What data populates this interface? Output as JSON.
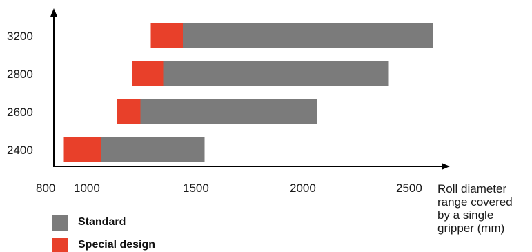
{
  "chart_data": {
    "type": "bar",
    "orientation": "horizontal",
    "stacked": true,
    "categories": [
      "3200",
      "2800",
      "2600",
      "2400"
    ],
    "series": [
      {
        "name": "Special design",
        "color": "#e8402a",
        "ranges": [
          [
            1245,
            1400
          ],
          [
            1155,
            1305
          ],
          [
            1080,
            1195
          ],
          [
            825,
            1005
          ]
        ]
      },
      {
        "name": "Standard",
        "color": "#7b7b7b",
        "ranges": [
          [
            1400,
            2610
          ],
          [
            1305,
            2395
          ],
          [
            1195,
            2050
          ],
          [
            1005,
            1505
          ]
        ]
      }
    ],
    "x_ticks": [
      "800",
      "1000",
      "1500",
      "2000",
      "2500"
    ],
    "xlabel": "Roll diameter\nrange covered\nby a single\ngripper (mm)",
    "ylabel": "",
    "xlim": [
      800,
      2600
    ],
    "grid": false,
    "legend": {
      "position": "bottom-left",
      "items": [
        {
          "label": "Standard",
          "color": "#7b7b7b"
        },
        {
          "label": "Special design",
          "color": "#e8402a"
        }
      ]
    }
  }
}
